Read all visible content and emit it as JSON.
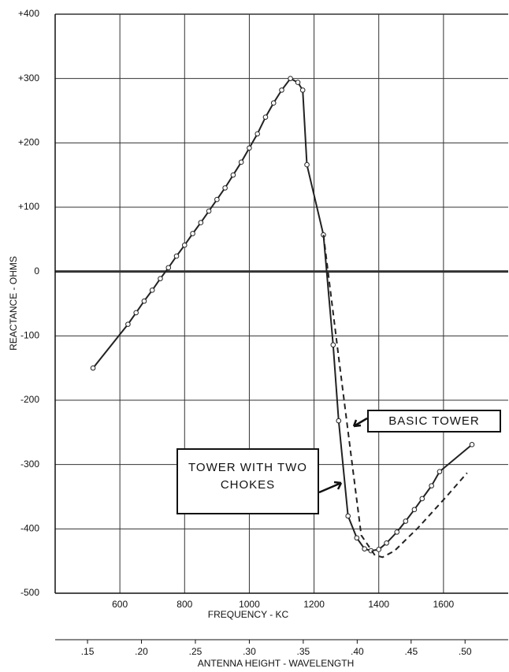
{
  "chart_data": {
    "type": "line",
    "x_label": "FREQUENCY - KC",
    "y_label": "REACTANCE - OHMS",
    "x2_label": "ANTENNA HEIGHT - WAVELENGTH",
    "xlim": [
      400,
      1800
    ],
    "xticks": [
      600,
      800,
      1000,
      1200,
      1400,
      1600
    ],
    "ylim": [
      -500,
      400
    ],
    "yticks": [
      {
        "value": -500,
        "label": "-500"
      },
      {
        "value": -400,
        "label": "-400"
      },
      {
        "value": -300,
        "label": "-300"
      },
      {
        "value": -200,
        "label": "-200"
      },
      {
        "value": -100,
        "label": "-100"
      },
      0,
      {
        "value": 100,
        "label": "+100"
      },
      {
        "value": 200,
        "label": "+200"
      },
      {
        "value": 300,
        "label": "+300"
      },
      {
        "value": 400,
        "label": "+400"
      }
    ],
    "x2lim": [
      0.12,
      0.54
    ],
    "x2ticks": [
      {
        "value": 0.15,
        "label": ".15"
      },
      {
        "value": 0.2,
        "label": ".20"
      },
      {
        "value": 0.25,
        "label": ".25"
      },
      {
        "value": 0.3,
        "label": ".30"
      },
      {
        "value": 0.35,
        "label": ".35"
      },
      {
        "value": 0.4,
        "label": ".40"
      },
      {
        "value": 0.45,
        "label": ".45"
      },
      {
        "value": 0.5,
        "label": ".50"
      }
    ],
    "grid": true,
    "series": [
      {
        "name": "TOWER WITH TWO CHOKES",
        "color": "#222",
        "dash": false,
        "markers": true,
        "x": [
          517,
          625,
          650,
          675,
          700,
          725,
          750,
          775,
          800,
          825,
          850,
          875,
          900,
          925,
          950,
          975,
          1000,
          1025,
          1050,
          1075,
          1100,
          1127,
          1150,
          1165,
          1178,
          1229,
          1259,
          1276,
          1305,
          1332,
          1356,
          1376,
          1400,
          1424,
          1456,
          1483,
          1510,
          1534,
          1563,
          1588,
          1688
        ],
        "values": [
          -150,
          -82,
          -64,
          -46,
          -29,
          -11,
          6,
          24,
          41,
          59,
          76,
          94,
          112,
          130,
          150,
          170,
          192,
          214,
          240,
          262,
          282,
          300,
          294,
          282,
          166,
          57,
          -114,
          -232,
          -380,
          -414,
          -431,
          -434,
          -432,
          -422,
          -405,
          -388,
          -370,
          -353,
          -333,
          -311,
          -269
        ]
      },
      {
        "name": "BASIC TOWER",
        "color": "#222",
        "dash": true,
        "markers": false,
        "x": [
          1229,
          1278,
          1315,
          1346,
          1388,
          1412,
          1449,
          1522,
          1607,
          1673
        ],
        "values": [
          57,
          -141,
          -288,
          -410,
          -441,
          -444,
          -434,
          -398,
          -351,
          -313
        ]
      }
    ]
  }
}
